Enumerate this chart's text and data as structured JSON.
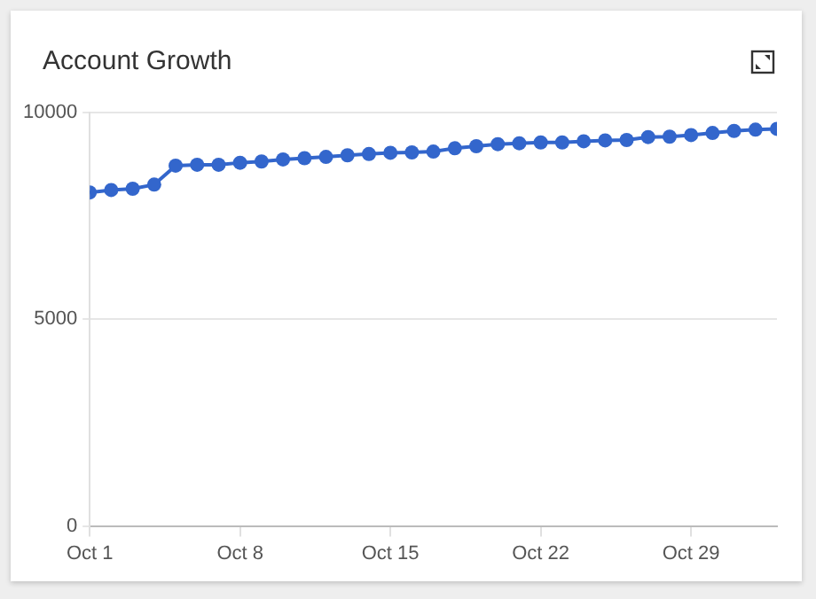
{
  "chart_data": {
    "type": "line",
    "title": "Account Growth",
    "x": [
      "--10-01",
      "--10-02",
      "--10-03",
      "--10-04",
      "--10-05",
      "--10-06",
      "--10-07",
      "--10-08",
      "--10-09",
      "--10-10",
      "--10-11",
      "--10-12",
      "--10-13",
      "--10-14",
      "--10-15",
      "--10-16",
      "--10-17",
      "--10-18",
      "--10-19",
      "--10-20",
      "--10-21",
      "--10-22",
      "--10-23",
      "--10-24",
      "--10-25",
      "--10-26",
      "--10-27",
      "--10-28",
      "--10-29",
      "--10-30",
      "--10-31",
      "--11-01",
      "--11-02"
    ],
    "series": [
      {
        "color": "#3366cc",
        "values": [
          8070,
          8130,
          8160,
          8260,
          8720,
          8740,
          8740,
          8790,
          8820,
          8870,
          8900,
          8930,
          8970,
          9000,
          9030,
          9040,
          9060,
          9140,
          9190,
          9240,
          9260,
          9280,
          9280,
          9310,
          9330,
          9340,
          9410,
          9420,
          9460,
          9510,
          9560,
          9590,
          9610
        ]
      }
    ],
    "xlim": [
      "--10-01",
      "--11-02"
    ],
    "xticks": [
      {
        "value": "--10-01",
        "label": "Oct 1"
      },
      {
        "value": "--10-08",
        "label": "Oct 8"
      },
      {
        "value": "--10-15",
        "label": "Oct 15"
      },
      {
        "value": "--10-22",
        "label": "Oct 22"
      },
      {
        "value": "--10-29",
        "label": "Oct 29"
      }
    ],
    "ylim": [
      0,
      10000
    ],
    "yticks": [
      0,
      5000,
      10000
    ],
    "grid": "y",
    "legend": false,
    "marker": "circle",
    "line_style": "solid"
  }
}
